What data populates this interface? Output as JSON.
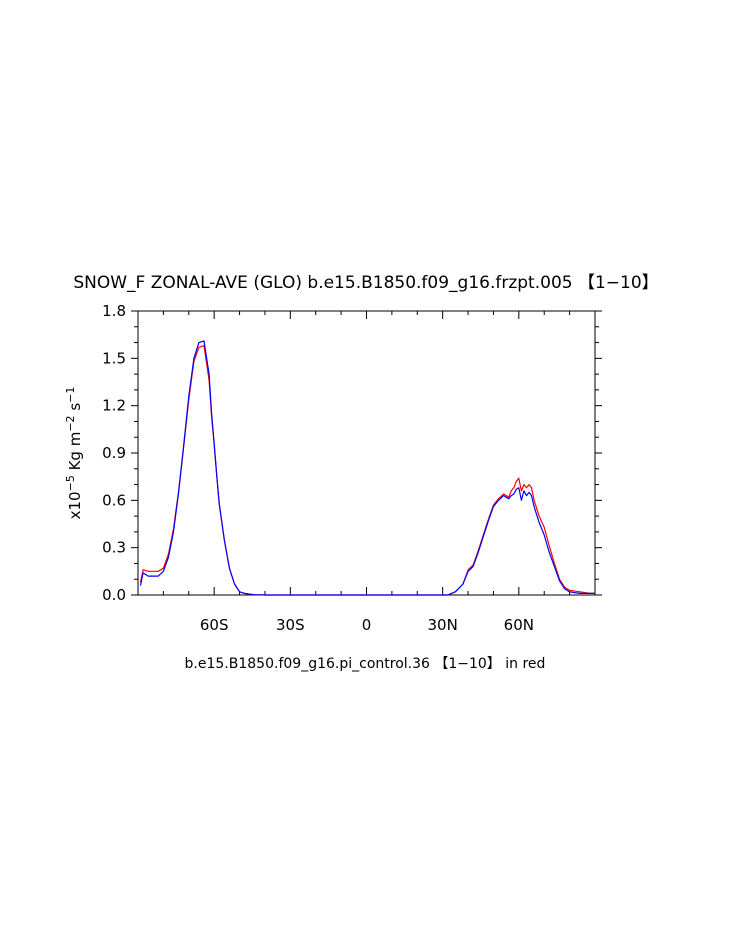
{
  "chart_data": {
    "type": "line",
    "title": "SNOW_F ZONAL-AVE (GLO) b.e15.B1850.f09_g16.frzpt.005 【1−10】",
    "subtitle": "b.e15.B1850.f09_g16.pi_control.36 【1−10】 in red",
    "ylabel": {
      "prefix": "x10",
      "exp1": "−5",
      "mid1": " Kg m",
      "exp2": "−2",
      "mid2": " s",
      "exp3": "−1"
    },
    "xlim": [
      -90,
      90
    ],
    "ylim": [
      0,
      1.8
    ],
    "x_ticks": [
      {
        "value": -60,
        "label": "60S"
      },
      {
        "value": -30,
        "label": "30S"
      },
      {
        "value": 0,
        "label": "0"
      },
      {
        "value": 30,
        "label": "30N"
      },
      {
        "value": 60,
        "label": "60N"
      }
    ],
    "y_ticks": [
      {
        "value": 0,
        "label": "0.0"
      },
      {
        "value": 0.3,
        "label": "0.3"
      },
      {
        "value": 0.6,
        "label": "0.6"
      },
      {
        "value": 0.9,
        "label": "0.9"
      },
      {
        "value": 1.2,
        "label": "1.2"
      },
      {
        "value": 1.5,
        "label": "1.5"
      },
      {
        "value": 1.8,
        "label": "1.8"
      }
    ],
    "grid": false,
    "series": [
      {
        "color": "#ff0000",
        "x": [
          -89,
          -88,
          -86,
          -84,
          -82,
          -80,
          -78,
          -76,
          -74,
          -72,
          -70,
          -68,
          -66,
          -64,
          -62,
          -61,
          -60,
          -59,
          -58,
          -56,
          -54,
          -52,
          -50,
          -48,
          -46,
          -44,
          -42,
          -40,
          -35,
          -30,
          -20,
          -10,
          0,
          10,
          20,
          28,
          32,
          35,
          38,
          40,
          42,
          44,
          46,
          48,
          50,
          52,
          54,
          56,
          57,
          58,
          59,
          60,
          61,
          62,
          63,
          64,
          65,
          66,
          68,
          70,
          72,
          74,
          76,
          78,
          80,
          84,
          88,
          90
        ],
        "y": [
          0.08,
          0.16,
          0.15,
          0.15,
          0.15,
          0.17,
          0.26,
          0.42,
          0.66,
          0.94,
          1.24,
          1.48,
          1.57,
          1.58,
          1.36,
          1.13,
          0.95,
          0.76,
          0.58,
          0.35,
          0.17,
          0.07,
          0.02,
          0.01,
          0.005,
          0.002,
          0.001,
          0.0,
          0.0,
          0.0,
          0.0,
          0.0,
          0.0,
          0.0,
          0.0,
          0.0,
          0.0,
          0.02,
          0.07,
          0.16,
          0.19,
          0.28,
          0.38,
          0.48,
          0.57,
          0.61,
          0.64,
          0.62,
          0.66,
          0.68,
          0.72,
          0.74,
          0.66,
          0.7,
          0.68,
          0.7,
          0.68,
          0.6,
          0.5,
          0.43,
          0.31,
          0.2,
          0.1,
          0.05,
          0.03,
          0.02,
          0.01,
          0.01
        ]
      },
      {
        "color": "#0000ff",
        "x": [
          -89,
          -88,
          -86,
          -84,
          -82,
          -80,
          -78,
          -76,
          -74,
          -72,
          -70,
          -68,
          -66,
          -64,
          -62,
          -61,
          -60,
          -59,
          -58,
          -56,
          -54,
          -52,
          -50,
          -48,
          -46,
          -44,
          -42,
          -40,
          -35,
          -30,
          -20,
          -10,
          0,
          10,
          20,
          28,
          32,
          35,
          38,
          40,
          42,
          44,
          46,
          48,
          50,
          52,
          54,
          56,
          57,
          58,
          59,
          60,
          61,
          62,
          63,
          64,
          65,
          66,
          68,
          70,
          72,
          74,
          76,
          78,
          80,
          84,
          88,
          90
        ],
        "y": [
          0.06,
          0.14,
          0.12,
          0.12,
          0.12,
          0.15,
          0.24,
          0.4,
          0.65,
          0.95,
          1.26,
          1.5,
          1.6,
          1.61,
          1.4,
          1.15,
          0.96,
          0.76,
          0.58,
          0.35,
          0.17,
          0.07,
          0.02,
          0.01,
          0.005,
          0.002,
          0.001,
          0.0,
          0.0,
          0.0,
          0.0,
          0.0,
          0.0,
          0.0,
          0.0,
          0.0,
          0.0,
          0.02,
          0.07,
          0.15,
          0.18,
          0.27,
          0.37,
          0.47,
          0.56,
          0.6,
          0.63,
          0.61,
          0.63,
          0.64,
          0.67,
          0.68,
          0.6,
          0.66,
          0.63,
          0.65,
          0.63,
          0.56,
          0.46,
          0.38,
          0.27,
          0.18,
          0.09,
          0.04,
          0.02,
          0.01,
          0.01,
          0.01
        ]
      }
    ]
  }
}
